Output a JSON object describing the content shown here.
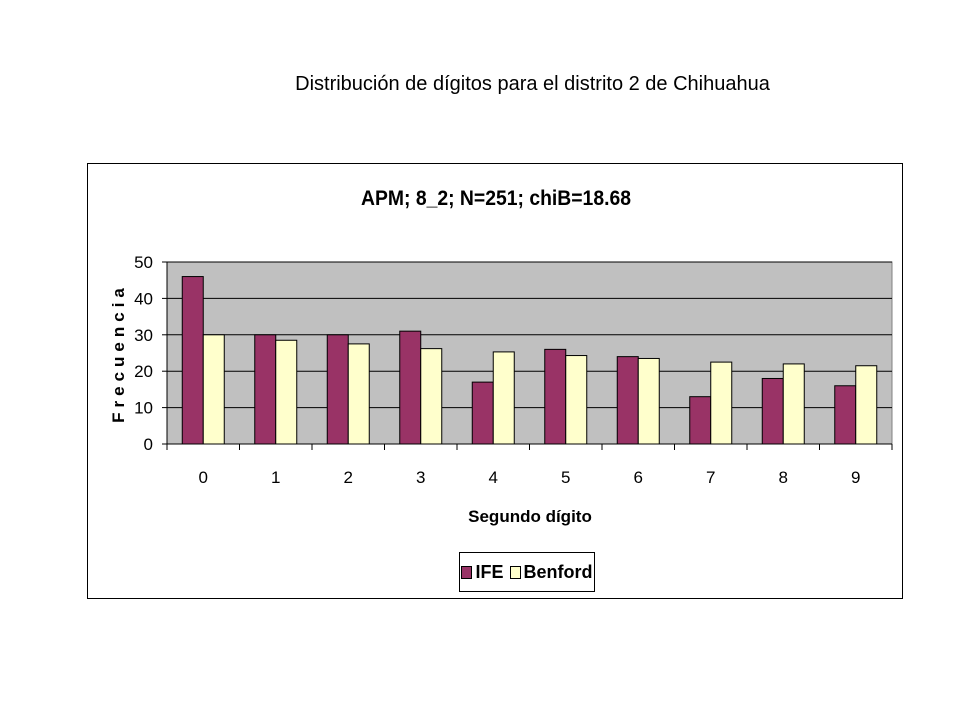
{
  "slide": {
    "title": "Distribución de dígitos para el distrito 2 de Chihuahua"
  },
  "colors": {
    "ife": "#993366",
    "benford": "#FFFFCC",
    "plot_background": "#C0C0C0",
    "gridline": "#000000"
  },
  "chart_data": {
    "type": "bar",
    "title": "APM; 8_2; N=251; chiB=18.68",
    "xlabel": "Segundo dígito",
    "ylabel": "Frecuencia",
    "categories": [
      "0",
      "1",
      "2",
      "3",
      "4",
      "5",
      "6",
      "7",
      "8",
      "9"
    ],
    "series": [
      {
        "name": "IFE",
        "color": "#993366",
        "values": [
          46,
          30,
          30,
          31,
          17,
          26,
          24,
          13,
          18,
          16
        ]
      },
      {
        "name": "Benford",
        "color": "#FFFFCC",
        "values": [
          30,
          28.5,
          27.5,
          26.2,
          25.3,
          24.3,
          23.5,
          22.5,
          22,
          21.5
        ]
      }
    ],
    "ylim": [
      0,
      50
    ],
    "yticks": [
      0,
      10,
      20,
      30,
      40,
      50
    ],
    "grid": true,
    "legend_position": "bottom"
  }
}
